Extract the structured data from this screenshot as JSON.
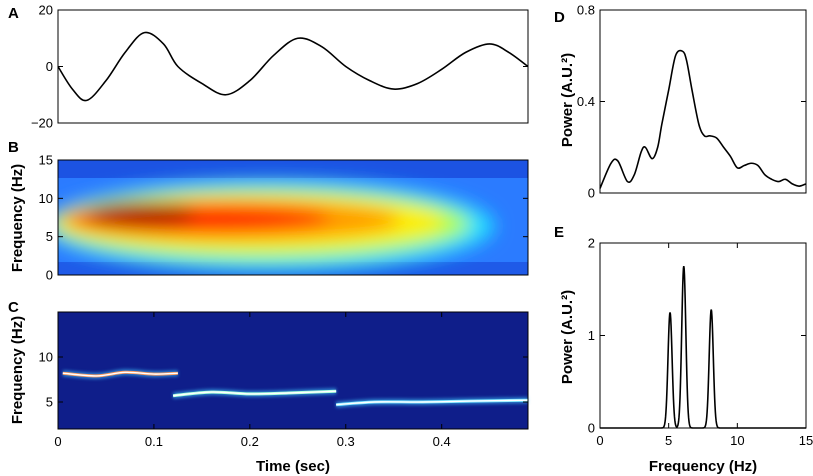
{
  "figure": {
    "xlabel_time": "Time (sec)",
    "xlabel_freq": "Frequency (Hz)",
    "ylabel_freq": "Frequency (Hz)",
    "ylabel_power": "Power (A.U.²)"
  },
  "chart_data": [
    {
      "id": "A",
      "panel_label": "A",
      "type": "line",
      "title": "",
      "xlabel": "",
      "ylabel": "",
      "xlim": [
        0,
        0.49
      ],
      "ylim": [
        -20,
        20
      ],
      "yticks": [
        {
          "v": -20,
          "t": "−20"
        },
        {
          "v": 0,
          "t": "0"
        },
        {
          "v": 20,
          "t": "20"
        }
      ],
      "x": [
        0,
        0.015,
        0.03,
        0.05,
        0.07,
        0.09,
        0.11,
        0.125,
        0.15,
        0.175,
        0.2,
        0.225,
        0.25,
        0.275,
        0.3,
        0.325,
        0.35,
        0.375,
        0.4,
        0.425,
        0.45,
        0.47,
        0.49
      ],
      "y": [
        0,
        -8,
        -12,
        -5,
        5,
        12,
        8,
        0,
        -6,
        -10,
        -5,
        4,
        10,
        7,
        0,
        -5,
        -8,
        -6,
        -1,
        5,
        8,
        5,
        0
      ]
    },
    {
      "id": "B",
      "panel_label": "B",
      "type": "heatmap",
      "xlabel": "",
      "ylabel": "Frequency (Hz)",
      "xlim": [
        0,
        0.49
      ],
      "ylim": [
        0,
        15
      ],
      "yticks": [
        {
          "v": 0,
          "t": "0"
        },
        {
          "v": 5,
          "t": "5"
        },
        {
          "v": 10,
          "t": "10"
        },
        {
          "v": 15,
          "t": "15"
        }
      ],
      "ridge": {
        "x": [
          0,
          0.1,
          0.2,
          0.3,
          0.4,
          0.44
        ],
        "y": [
          7.5,
          7.5,
          6.5,
          5.5,
          4.8,
          4.8
        ]
      },
      "colormap": "jet"
    },
    {
      "id": "C",
      "panel_label": "C",
      "type": "heatmap",
      "xlabel": "Time (sec)",
      "ylabel": "Frequency (Hz)",
      "xlim": [
        0,
        0.49
      ],
      "ylim": [
        2,
        15
      ],
      "xticks": [
        {
          "v": 0,
          "t": "0"
        },
        {
          "v": 0.1,
          "t": "0.1"
        },
        {
          "v": 0.2,
          "t": "0.2"
        },
        {
          "v": 0.3,
          "t": "0.3"
        },
        {
          "v": 0.4,
          "t": "0.4"
        }
      ],
      "yticks": [
        {
          "v": 5,
          "t": "5"
        },
        {
          "v": 10,
          "t": "10"
        }
      ],
      "segments": [
        {
          "x": [
            0.005,
            0.04,
            0.07,
            0.1,
            0.125
          ],
          "y": [
            8.2,
            7.9,
            8.3,
            8.1,
            8.2
          ],
          "color": "#ff9a5c"
        },
        {
          "x": [
            0.12,
            0.16,
            0.2,
            0.24,
            0.29
          ],
          "y": [
            5.7,
            6.1,
            5.9,
            6.0,
            6.2
          ],
          "color": "#a8ffd8"
        },
        {
          "x": [
            0.29,
            0.33,
            0.38,
            0.43,
            0.49
          ],
          "y": [
            4.7,
            5.0,
            5.0,
            5.1,
            5.2
          ],
          "color": "#7fe7ff"
        }
      ]
    },
    {
      "id": "D",
      "panel_label": "D",
      "type": "line",
      "xlabel": "",
      "ylabel": "Power (A.U.²)",
      "xlim": [
        0,
        15
      ],
      "ylim": [
        0,
        0.8
      ],
      "yticks": [
        {
          "v": 0,
          "t": "0"
        },
        {
          "v": 0.4,
          "t": "0.4"
        },
        {
          "v": 0.8,
          "t": "0.8"
        }
      ],
      "x": [
        0,
        0.8,
        1.3,
        2.0,
        2.5,
        3.0,
        3.3,
        3.8,
        4.2,
        4.5,
        5.0,
        5.5,
        6.0,
        6.3,
        6.7,
        7.2,
        7.6,
        8.0,
        8.5,
        9.0,
        9.5,
        10.0,
        10.5,
        11.0,
        11.5,
        12.0,
        12.5,
        13.0,
        13.5,
        14.0,
        14.5,
        15.0
      ],
      "y": [
        0.02,
        0.13,
        0.14,
        0.05,
        0.08,
        0.18,
        0.2,
        0.15,
        0.2,
        0.3,
        0.45,
        0.6,
        0.62,
        0.58,
        0.45,
        0.3,
        0.25,
        0.25,
        0.24,
        0.2,
        0.16,
        0.11,
        0.12,
        0.13,
        0.12,
        0.08,
        0.06,
        0.05,
        0.06,
        0.04,
        0.03,
        0.04
      ]
    },
    {
      "id": "E",
      "panel_label": "E",
      "type": "line",
      "xlabel": "Frequency (Hz)",
      "ylabel": "Power (A.U.²)",
      "xlim": [
        0,
        15
      ],
      "ylim": [
        0,
        2
      ],
      "xticks": [
        {
          "v": 0,
          "t": "0"
        },
        {
          "v": 5,
          "t": "5"
        },
        {
          "v": 10,
          "t": "10"
        },
        {
          "v": 15,
          "t": "15"
        }
      ],
      "yticks": [
        {
          "v": 0,
          "t": "0"
        },
        {
          "v": 1,
          "t": "1"
        },
        {
          "v": 2,
          "t": "2"
        }
      ],
      "peaks": [
        {
          "center": 5.1,
          "height": 1.25,
          "width": 0.15
        },
        {
          "center": 6.1,
          "height": 1.75,
          "width": 0.15
        },
        {
          "center": 8.1,
          "height": 1.28,
          "width": 0.15
        }
      ]
    }
  ]
}
